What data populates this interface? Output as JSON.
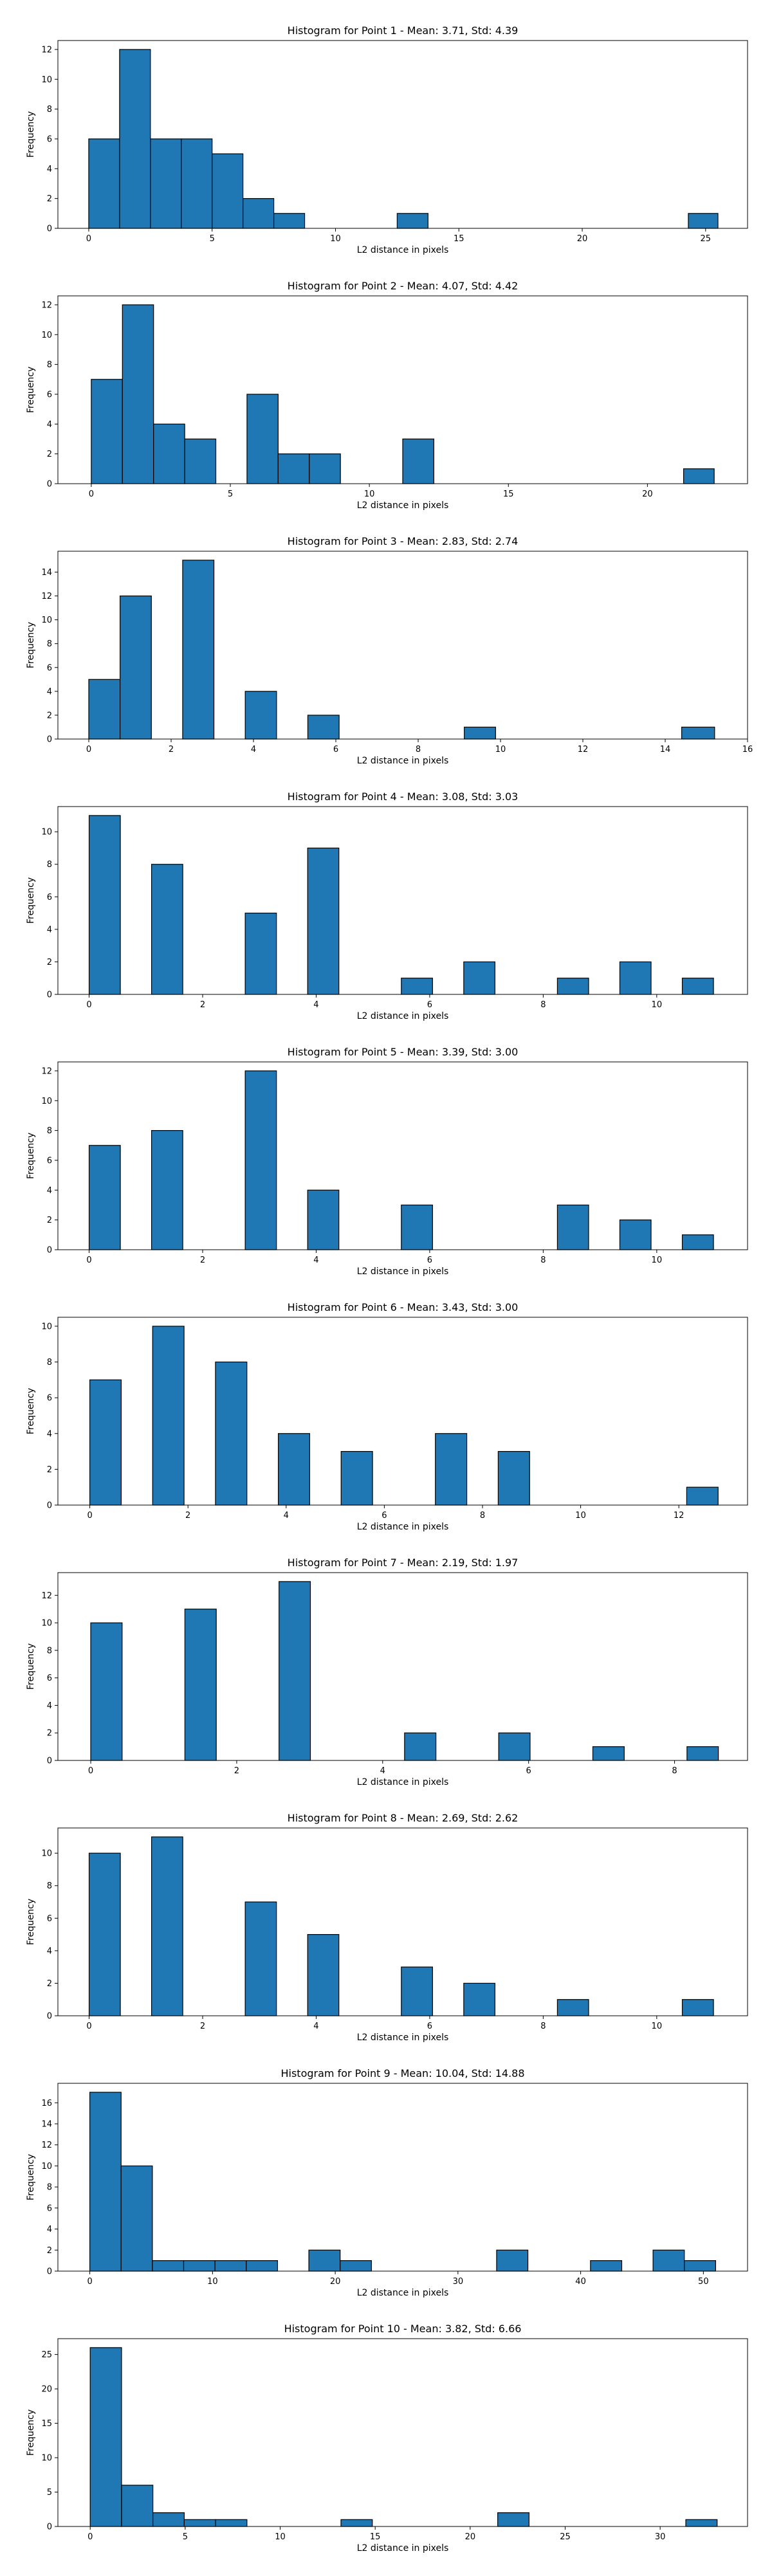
{
  "chart_data": [
    {
      "type": "bar",
      "title": "Histogram for Point 1 - Mean: 3.71, Std: 4.39",
      "xlabel": "L2 distance in pixels",
      "ylabel": "Frequency",
      "xlim": [
        -1.25,
        26.7
      ],
      "ylim": [
        0,
        12.6
      ],
      "xticks": [
        0,
        5,
        10,
        15,
        20,
        25
      ],
      "yticks": [
        0,
        2,
        4,
        6,
        8,
        10,
        12
      ],
      "bars": [
        {
          "x0": 0.0,
          "x1": 1.25,
          "value": 6
        },
        {
          "x0": 1.25,
          "x1": 2.5,
          "value": 12
        },
        {
          "x0": 2.5,
          "x1": 3.75,
          "value": 6
        },
        {
          "x0": 3.75,
          "x1": 5.0,
          "value": 6
        },
        {
          "x0": 5.0,
          "x1": 6.25,
          "value": 5
        },
        {
          "x0": 6.25,
          "x1": 7.5,
          "value": 2
        },
        {
          "x0": 7.5,
          "x1": 8.75,
          "value": 1
        },
        {
          "x0": 12.5,
          "x1": 13.75,
          "value": 1
        },
        {
          "x0": 24.3,
          "x1": 25.5,
          "value": 1
        }
      ]
    },
    {
      "type": "bar",
      "title": "Histogram for Point 2 - Mean: 4.07, Std: 4.42",
      "xlabel": "L2 distance in pixels",
      "ylabel": "Frequency",
      "xlim": [
        -1.2,
        23.6
      ],
      "ylim": [
        0,
        12.6
      ],
      "xticks": [
        0,
        5,
        10,
        15,
        20
      ],
      "yticks": [
        0,
        2,
        4,
        6,
        8,
        10,
        12
      ],
      "bars": [
        {
          "x0": 0.0,
          "x1": 1.12,
          "value": 7
        },
        {
          "x0": 1.12,
          "x1": 2.24,
          "value": 12
        },
        {
          "x0": 2.24,
          "x1": 3.36,
          "value": 4
        },
        {
          "x0": 3.36,
          "x1": 4.48,
          "value": 3
        },
        {
          "x0": 5.6,
          "x1": 6.72,
          "value": 6
        },
        {
          "x0": 6.72,
          "x1": 7.84,
          "value": 2
        },
        {
          "x0": 7.84,
          "x1": 8.96,
          "value": 2
        },
        {
          "x0": 11.2,
          "x1": 12.32,
          "value": 3
        },
        {
          "x0": 21.3,
          "x1": 22.4,
          "value": 1
        }
      ]
    },
    {
      "type": "bar",
      "title": "Histogram for Point 3 - Mean: 2.83, Std: 2.74",
      "xlabel": "L2 distance in pixels",
      "ylabel": "Frequency",
      "xlim": [
        -0.75,
        16.0
      ],
      "ylim": [
        0,
        15.75
      ],
      "xticks": [
        0,
        2,
        4,
        6,
        8,
        10,
        12,
        14,
        16
      ],
      "yticks": [
        0,
        2,
        4,
        6,
        8,
        10,
        12,
        14
      ],
      "bars": [
        {
          "x0": 0.0,
          "x1": 0.76,
          "value": 5
        },
        {
          "x0": 0.76,
          "x1": 1.52,
          "value": 12
        },
        {
          "x0": 2.28,
          "x1": 3.04,
          "value": 15
        },
        {
          "x0": 3.8,
          "x1": 4.56,
          "value": 4
        },
        {
          "x0": 5.32,
          "x1": 6.08,
          "value": 2
        },
        {
          "x0": 9.12,
          "x1": 9.88,
          "value": 1
        },
        {
          "x0": 14.4,
          "x1": 15.2,
          "value": 1
        }
      ]
    },
    {
      "type": "bar",
      "title": "Histogram for Point 4 - Mean: 3.08, Std: 3.03",
      "xlabel": "L2 distance in pixels",
      "ylabel": "Frequency",
      "xlim": [
        -0.55,
        11.6
      ],
      "ylim": [
        0,
        11.55
      ],
      "xticks": [
        0,
        2,
        4,
        6,
        8,
        10
      ],
      "yticks": [
        0,
        2,
        4,
        6,
        8,
        10
      ],
      "bars": [
        {
          "x0": 0.0,
          "x1": 0.55,
          "value": 11
        },
        {
          "x0": 1.1,
          "x1": 1.65,
          "value": 8
        },
        {
          "x0": 2.75,
          "x1": 3.3,
          "value": 5
        },
        {
          "x0": 3.85,
          "x1": 4.4,
          "value": 9
        },
        {
          "x0": 5.5,
          "x1": 6.05,
          "value": 1
        },
        {
          "x0": 6.6,
          "x1": 7.15,
          "value": 2
        },
        {
          "x0": 8.25,
          "x1": 8.8,
          "value": 1
        },
        {
          "x0": 9.35,
          "x1": 9.9,
          "value": 2
        },
        {
          "x0": 10.45,
          "x1": 11.0,
          "value": 1
        }
      ]
    },
    {
      "type": "bar",
      "title": "Histogram for Point 5 - Mean: 3.39, Std: 3.00",
      "xlabel": "L2 distance in pixels",
      "ylabel": "Frequency",
      "xlim": [
        -0.55,
        11.6
      ],
      "ylim": [
        0,
        12.6
      ],
      "xticks": [
        0,
        2,
        4,
        6,
        8,
        10
      ],
      "yticks": [
        0,
        2,
        4,
        6,
        8,
        10,
        12
      ],
      "bars": [
        {
          "x0": 0.0,
          "x1": 0.55,
          "value": 7
        },
        {
          "x0": 1.1,
          "x1": 1.65,
          "value": 8
        },
        {
          "x0": 2.75,
          "x1": 3.3,
          "value": 12
        },
        {
          "x0": 3.85,
          "x1": 4.4,
          "value": 4
        },
        {
          "x0": 5.5,
          "x1": 6.05,
          "value": 3
        },
        {
          "x0": 8.25,
          "x1": 8.8,
          "value": 3
        },
        {
          "x0": 9.35,
          "x1": 9.9,
          "value": 2
        },
        {
          "x0": 10.45,
          "x1": 11.0,
          "value": 1
        }
      ]
    },
    {
      "type": "bar",
      "title": "Histogram for Point 6 - Mean: 3.43, Std: 3.00",
      "xlabel": "L2 distance in pixels",
      "ylabel": "Frequency",
      "xlim": [
        -0.65,
        13.4
      ],
      "ylim": [
        0,
        10.5
      ],
      "xticks": [
        0,
        2,
        4,
        6,
        8,
        10,
        12
      ],
      "yticks": [
        0,
        2,
        4,
        6,
        8,
        10
      ],
      "bars": [
        {
          "x0": 0.0,
          "x1": 0.64,
          "value": 7
        },
        {
          "x0": 1.28,
          "x1": 1.92,
          "value": 10
        },
        {
          "x0": 2.56,
          "x1": 3.2,
          "value": 8
        },
        {
          "x0": 3.84,
          "x1": 4.48,
          "value": 4
        },
        {
          "x0": 5.12,
          "x1": 5.76,
          "value": 3
        },
        {
          "x0": 7.04,
          "x1": 7.68,
          "value": 4
        },
        {
          "x0": 8.32,
          "x1": 8.96,
          "value": 3
        },
        {
          "x0": 12.16,
          "x1": 12.8,
          "value": 1
        }
      ]
    },
    {
      "type": "bar",
      "title": "Histogram for Point 7 - Mean: 2.19, Std: 1.97",
      "xlabel": "L2 distance in pixels",
      "ylabel": "Frequency",
      "xlim": [
        -0.45,
        9.0
      ],
      "ylim": [
        0,
        13.65
      ],
      "xticks": [
        0,
        2,
        4,
        6,
        8
      ],
      "yticks": [
        0,
        2,
        4,
        6,
        8,
        10,
        12
      ],
      "bars": [
        {
          "x0": 0.0,
          "x1": 0.43,
          "value": 10
        },
        {
          "x0": 1.29,
          "x1": 1.72,
          "value": 11
        },
        {
          "x0": 2.58,
          "x1": 3.01,
          "value": 13
        },
        {
          "x0": 4.3,
          "x1": 4.73,
          "value": 2
        },
        {
          "x0": 5.59,
          "x1": 6.02,
          "value": 2
        },
        {
          "x0": 6.88,
          "x1": 7.31,
          "value": 1
        },
        {
          "x0": 8.17,
          "x1": 8.6,
          "value": 1
        }
      ]
    },
    {
      "type": "bar",
      "title": "Histogram for Point 8 - Mean: 2.69, Std: 2.62",
      "xlabel": "L2 distance in pixels",
      "ylabel": "Frequency",
      "xlim": [
        -0.55,
        11.6
      ],
      "ylim": [
        0,
        11.55
      ],
      "xticks": [
        0,
        2,
        4,
        6,
        8,
        10
      ],
      "yticks": [
        0,
        2,
        4,
        6,
        8,
        10
      ],
      "bars": [
        {
          "x0": 0.0,
          "x1": 0.55,
          "value": 10
        },
        {
          "x0": 1.1,
          "x1": 1.65,
          "value": 11
        },
        {
          "x0": 2.75,
          "x1": 3.3,
          "value": 7
        },
        {
          "x0": 3.85,
          "x1": 4.4,
          "value": 5
        },
        {
          "x0": 5.5,
          "x1": 6.05,
          "value": 3
        },
        {
          "x0": 6.6,
          "x1": 7.15,
          "value": 2
        },
        {
          "x0": 8.25,
          "x1": 8.8,
          "value": 1
        },
        {
          "x0": 10.45,
          "x1": 11.0,
          "value": 1
        }
      ]
    },
    {
      "type": "bar",
      "title": "Histogram for Point 9 - Mean: 10.04, Std: 14.88",
      "xlabel": "L2 distance in pixels",
      "ylabel": "Frequency",
      "xlim": [
        -2.6,
        53.6
      ],
      "ylim": [
        0,
        17.85
      ],
      "xticks": [
        0,
        10,
        20,
        30,
        40,
        50
      ],
      "yticks": [
        0,
        2,
        4,
        6,
        8,
        10,
        12,
        14,
        16
      ],
      "bars": [
        {
          "x0": 0.0,
          "x1": 2.55,
          "value": 17
        },
        {
          "x0": 2.55,
          "x1": 5.1,
          "value": 10
        },
        {
          "x0": 5.1,
          "x1": 7.65,
          "value": 1
        },
        {
          "x0": 7.65,
          "x1": 10.2,
          "value": 1
        },
        {
          "x0": 10.2,
          "x1": 12.75,
          "value": 1
        },
        {
          "x0": 12.75,
          "x1": 15.3,
          "value": 1
        },
        {
          "x0": 17.85,
          "x1": 20.4,
          "value": 2
        },
        {
          "x0": 20.4,
          "x1": 22.95,
          "value": 1
        },
        {
          "x0": 33.15,
          "x1": 35.7,
          "value": 2
        },
        {
          "x0": 40.8,
          "x1": 43.35,
          "value": 1
        },
        {
          "x0": 45.9,
          "x1": 48.45,
          "value": 2
        },
        {
          "x0": 48.45,
          "x1": 51.0,
          "value": 1
        }
      ]
    },
    {
      "type": "bar",
      "title": "Histogram for Point 10 - Mean: 3.82, Std: 6.66",
      "xlabel": "L2 distance in pixels",
      "ylabel": "Frequency",
      "xlim": [
        -1.7,
        34.6
      ],
      "ylim": [
        0,
        27.3
      ],
      "xticks": [
        0,
        5,
        10,
        15,
        20,
        25,
        30
      ],
      "yticks": [
        0,
        5,
        10,
        15,
        20,
        25
      ],
      "bars": [
        {
          "x0": 0.0,
          "x1": 1.65,
          "value": 26
        },
        {
          "x0": 1.65,
          "x1": 3.3,
          "value": 6
        },
        {
          "x0": 3.3,
          "x1": 4.95,
          "value": 2
        },
        {
          "x0": 4.95,
          "x1": 6.6,
          "value": 1
        },
        {
          "x0": 6.6,
          "x1": 8.25,
          "value": 1
        },
        {
          "x0": 13.2,
          "x1": 14.85,
          "value": 1
        },
        {
          "x0": 21.45,
          "x1": 23.1,
          "value": 2
        },
        {
          "x0": 31.35,
          "x1": 33.0,
          "value": 1
        }
      ]
    }
  ],
  "colors": {
    "bar_fill": "#1f77b4",
    "bar_edge": "#000000",
    "axes": "#000000",
    "background": "#ffffff"
  }
}
